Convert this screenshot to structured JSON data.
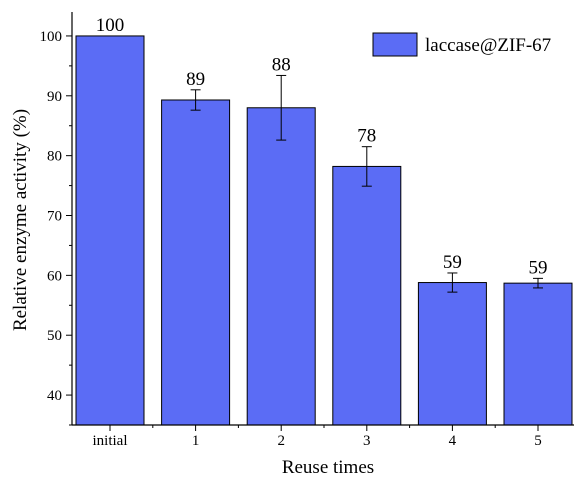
{
  "chart_data": {
    "type": "bar",
    "categories": [
      "initial",
      "1",
      "2",
      "3",
      "4",
      "5"
    ],
    "series": [
      {
        "name": "laccase@ZIF-67",
        "values": [
          100,
          89.3,
          88.0,
          78.2,
          58.8,
          58.7
        ],
        "error": [
          0,
          1.7,
          5.4,
          3.3,
          1.6,
          0.8
        ],
        "labels": [
          "100",
          "89",
          "88",
          "78",
          "59",
          "59"
        ],
        "color": "#5b6cf5"
      }
    ],
    "xlabel": "Reuse times",
    "ylabel": "Relative enzyme activity (%)",
    "ylim": [
      35,
      104
    ],
    "yticks": [
      40,
      50,
      60,
      70,
      80,
      90,
      100
    ],
    "grid": false,
    "legend_position": "top-right"
  }
}
